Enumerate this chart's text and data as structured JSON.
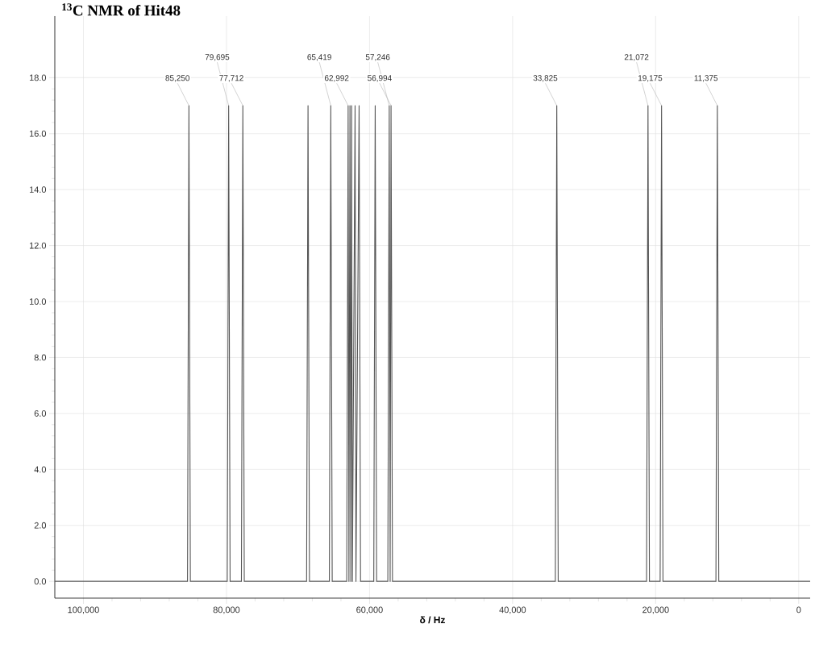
{
  "chart_data": {
    "type": "line",
    "title": "$^{13}$C NMR of Hit48",
    "xlabel": "δ / Hz",
    "xlim": [
      104000,
      -1600
    ],
    "ylim": [
      -0.6,
      20.2
    ],
    "xticks": [
      {
        "value": 100000,
        "label": "100,000"
      },
      {
        "value": 80000,
        "label": "80,000"
      },
      {
        "value": 60000,
        "label": "60,000"
      },
      {
        "value": 40000,
        "label": "40,000"
      },
      {
        "value": 20000,
        "label": "20,000"
      },
      0
    ],
    "yticks": [
      {
        "value": 0,
        "label": "0.0"
      },
      {
        "value": 2,
        "label": "2.0"
      },
      {
        "value": 4,
        "label": "4.0"
      },
      {
        "value": 6,
        "label": "6.0"
      },
      {
        "value": 8,
        "label": "8.0"
      },
      {
        "value": 10,
        "label": "10.0"
      },
      {
        "value": 12,
        "label": "12.0"
      },
      {
        "value": 14,
        "label": "14.0"
      },
      {
        "value": 16,
        "label": "16.0"
      },
      {
        "value": 18,
        "label": "18.0"
      }
    ],
    "grid": true,
    "series": [
      {
        "color": "#555555",
        "x": [
          104000,
          85450,
          85250,
          85050,
          79895,
          79695,
          79495,
          77912,
          77712,
          77512,
          68800,
          68600,
          68400,
          65619,
          65419,
          65219,
          63192,
          62992,
          62880,
          62740,
          62620,
          62510,
          62400,
          62020,
          61900,
          61460,
          61260,
          59410,
          59210,
          59010,
          57446,
          57246,
          57120,
          56994,
          56794,
          34025,
          33825,
          33625,
          21272,
          21072,
          20872,
          19375,
          19175,
          18975,
          11575,
          11375,
          11175,
          -1600
        ],
        "values": [
          0,
          0,
          17,
          0,
          0,
          17,
          0,
          0,
          17,
          0,
          0,
          17,
          0,
          0,
          17,
          0,
          0,
          17,
          0,
          17,
          0,
          17,
          0,
          17,
          0,
          17,
          0,
          0,
          17,
          0,
          0,
          17,
          0,
          17,
          0,
          0,
          17,
          0,
          0,
          17,
          0,
          0,
          17,
          0,
          0,
          17,
          0,
          0
        ]
      }
    ],
    "annotations": [
      {
        "text": "85,250",
        "x": 85250,
        "y": 17
      },
      {
        "text": "79,695",
        "x": 79695,
        "y": 17
      },
      {
        "text": "77,712",
        "x": 77712,
        "y": 17
      },
      {
        "text": "65,419",
        "x": 65419,
        "y": 17
      },
      {
        "text": "62,992",
        "x": 62992,
        "y": 17
      },
      {
        "text": "57,246",
        "x": 57246,
        "y": 17
      },
      {
        "text": "56,994",
        "x": 56994,
        "y": 17
      },
      {
        "text": "33,825",
        "x": 33825,
        "y": 17
      },
      {
        "text": "21,072",
        "x": 21072,
        "y": 17
      },
      {
        "text": "19,175",
        "x": 19175,
        "y": 17
      },
      {
        "text": "11,375",
        "x": 11375,
        "y": 17
      }
    ]
  }
}
